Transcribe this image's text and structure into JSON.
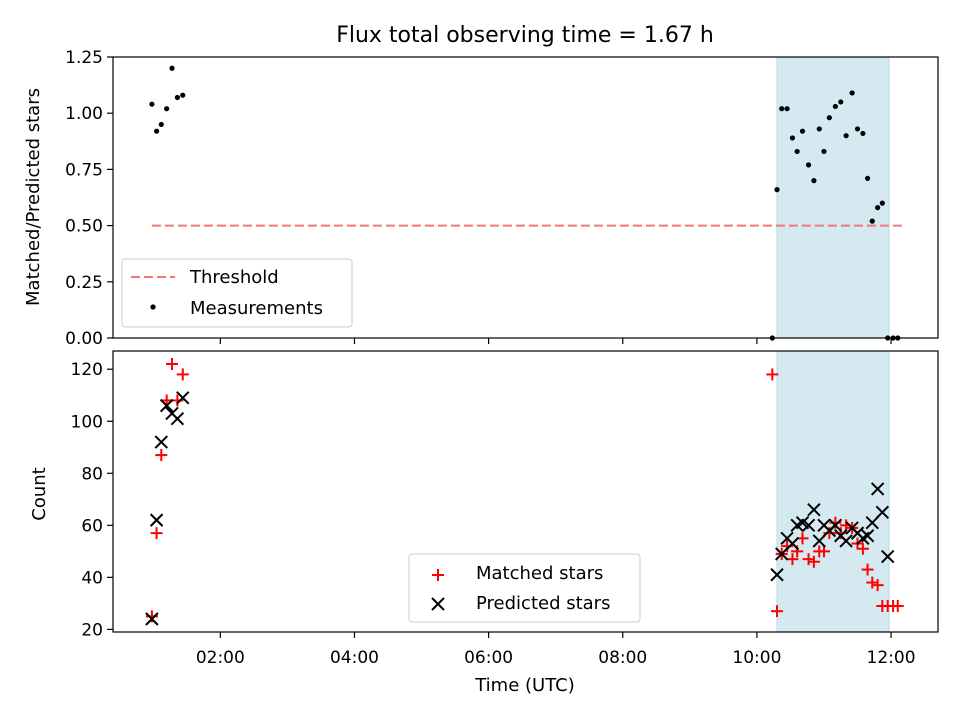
{
  "title": "Flux total observing time = 1.67 h",
  "xlabel": "Time (UTC)",
  "xtick_labels": [
    "02:00",
    "04:00",
    "06:00",
    "08:00",
    "10:00",
    "12:00"
  ],
  "colors": {
    "threshold": "#f07878",
    "measurements": "#000000",
    "matched": "#ff0000",
    "predicted": "#000000",
    "span_fill": "#d4eaf0",
    "span_edge": "#b6dbe6"
  },
  "chart_data": [
    {
      "type": "scatter",
      "ylabel": "Matched/Predicted stars",
      "xlim": [
        0.4,
        12.7
      ],
      "ylim": [
        0,
        1.25
      ],
      "yticks": [
        0.0,
        0.25,
        0.5,
        0.75,
        1.0,
        1.25
      ],
      "ytick_labels": [
        "0.00",
        "0.25",
        "0.50",
        "0.75",
        "1.00",
        "1.25"
      ],
      "shaded_span": [
        10.3,
        11.97
      ],
      "grid": false,
      "legend": {
        "position": "lower-left",
        "threshold_label": "Threshold",
        "measurements_label": "Measurements"
      },
      "threshold": {
        "value": 0.5,
        "x": [
          0.98,
          12.17
        ]
      },
      "series": [
        {
          "name": "Measurements",
          "x": [
            0.98,
            1.05,
            1.12,
            1.2,
            1.28,
            1.36,
            1.44,
            10.23,
            10.3,
            10.37,
            10.45,
            10.53,
            10.6,
            10.68,
            10.77,
            10.85,
            10.93,
            11.0,
            11.08,
            11.17,
            11.25,
            11.33,
            11.42,
            11.5,
            11.58,
            11.65,
            11.72,
            11.8,
            11.87,
            11.95,
            12.03,
            12.1
          ],
          "y": [
            1.04,
            0.92,
            0.95,
            1.02,
            1.2,
            1.07,
            1.08,
            0.0,
            0.66,
            1.02,
            1.02,
            0.89,
            0.83,
            0.92,
            0.77,
            0.7,
            0.93,
            0.83,
            0.98,
            1.03,
            1.05,
            0.9,
            1.09,
            0.93,
            0.91,
            0.71,
            0.52,
            0.58,
            0.6,
            0.0,
            0.0,
            0.0
          ]
        }
      ]
    },
    {
      "type": "scatter",
      "ylabel": "Count",
      "xlim": [
        0.4,
        12.7
      ],
      "ylim": [
        19,
        127
      ],
      "yticks": [
        20,
        40,
        60,
        80,
        100,
        120
      ],
      "ytick_labels": [
        "20",
        "40",
        "60",
        "80",
        "100",
        "120"
      ],
      "shaded_span": [
        10.3,
        11.97
      ],
      "grid": false,
      "legend": {
        "position": "lower-center"
      },
      "series": [
        {
          "name": "Matched stars",
          "x": [
            0.98,
            1.05,
            1.12,
            1.2,
            1.28,
            1.36,
            1.44,
            10.23,
            10.3,
            10.37,
            10.45,
            10.53,
            10.6,
            10.68,
            10.77,
            10.85,
            10.93,
            11.0,
            11.08,
            11.17,
            11.25,
            11.33,
            11.42,
            11.5,
            11.58,
            11.65,
            11.72,
            11.8,
            11.87,
            11.95,
            12.03,
            12.1
          ],
          "y": [
            25,
            57,
            87,
            108,
            122,
            108,
            118,
            118,
            27,
            49,
            52,
            47,
            50,
            55,
            47,
            46,
            50,
            50,
            57,
            61,
            57,
            60,
            59,
            53,
            51,
            43,
            38,
            37,
            29,
            29,
            29,
            29
          ]
        },
        {
          "name": "Predicted stars",
          "x": [
            0.98,
            1.05,
            1.12,
            1.2,
            1.28,
            1.36,
            1.44,
            10.3,
            10.37,
            10.45,
            10.53,
            10.6,
            10.68,
            10.77,
            10.85,
            10.93,
            11.0,
            11.08,
            11.17,
            11.25,
            11.33,
            11.42,
            11.5,
            11.58,
            11.65,
            11.72,
            11.8,
            11.87,
            11.95
          ],
          "y": [
            24,
            62,
            92,
            106,
            103,
            101,
            109,
            41,
            49,
            55,
            53,
            60,
            61,
            60,
            66,
            54,
            60,
            58,
            60,
            56,
            54,
            59,
            57,
            55,
            56,
            61,
            74,
            65,
            48
          ]
        }
      ]
    }
  ]
}
